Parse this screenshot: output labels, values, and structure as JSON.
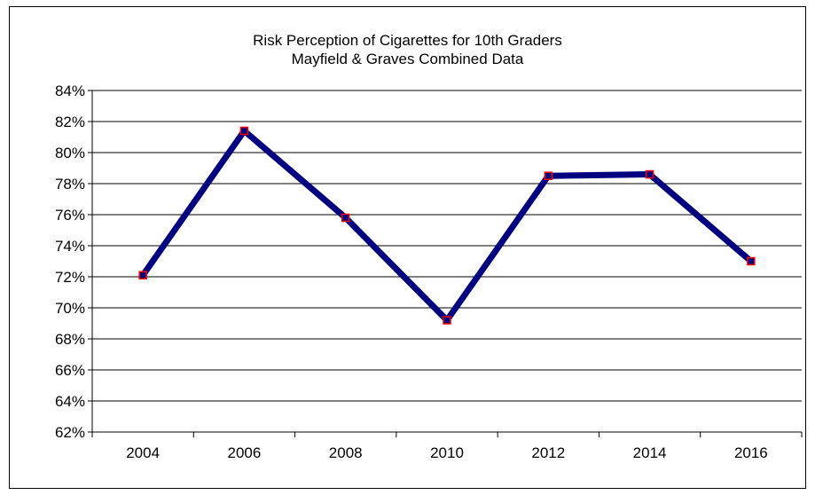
{
  "chart_data": {
    "type": "line",
    "title": "Risk Perception of Cigarettes for 10th Graders",
    "subtitle": "Mayfield & Graves Combined Data",
    "xlabel": "",
    "ylabel": "",
    "categories": [
      "2004",
      "2006",
      "2008",
      "2010",
      "2012",
      "2014",
      "2016"
    ],
    "series": [
      {
        "values": [
          72.1,
          81.4,
          75.8,
          69.2,
          78.5,
          78.6,
          73.0
        ]
      }
    ],
    "ylim": [
      62,
      84
    ],
    "ytick_step": 2,
    "ytick_labels": [
      "62%",
      "64%",
      "66%",
      "68%",
      "70%",
      "72%",
      "74%",
      "76%",
      "78%",
      "80%",
      "82%",
      "84%"
    ],
    "grid": true,
    "legend": "none",
    "colors": {
      "line": "#000080",
      "marker_edge": "#ff0000",
      "grid": "#000000"
    }
  }
}
